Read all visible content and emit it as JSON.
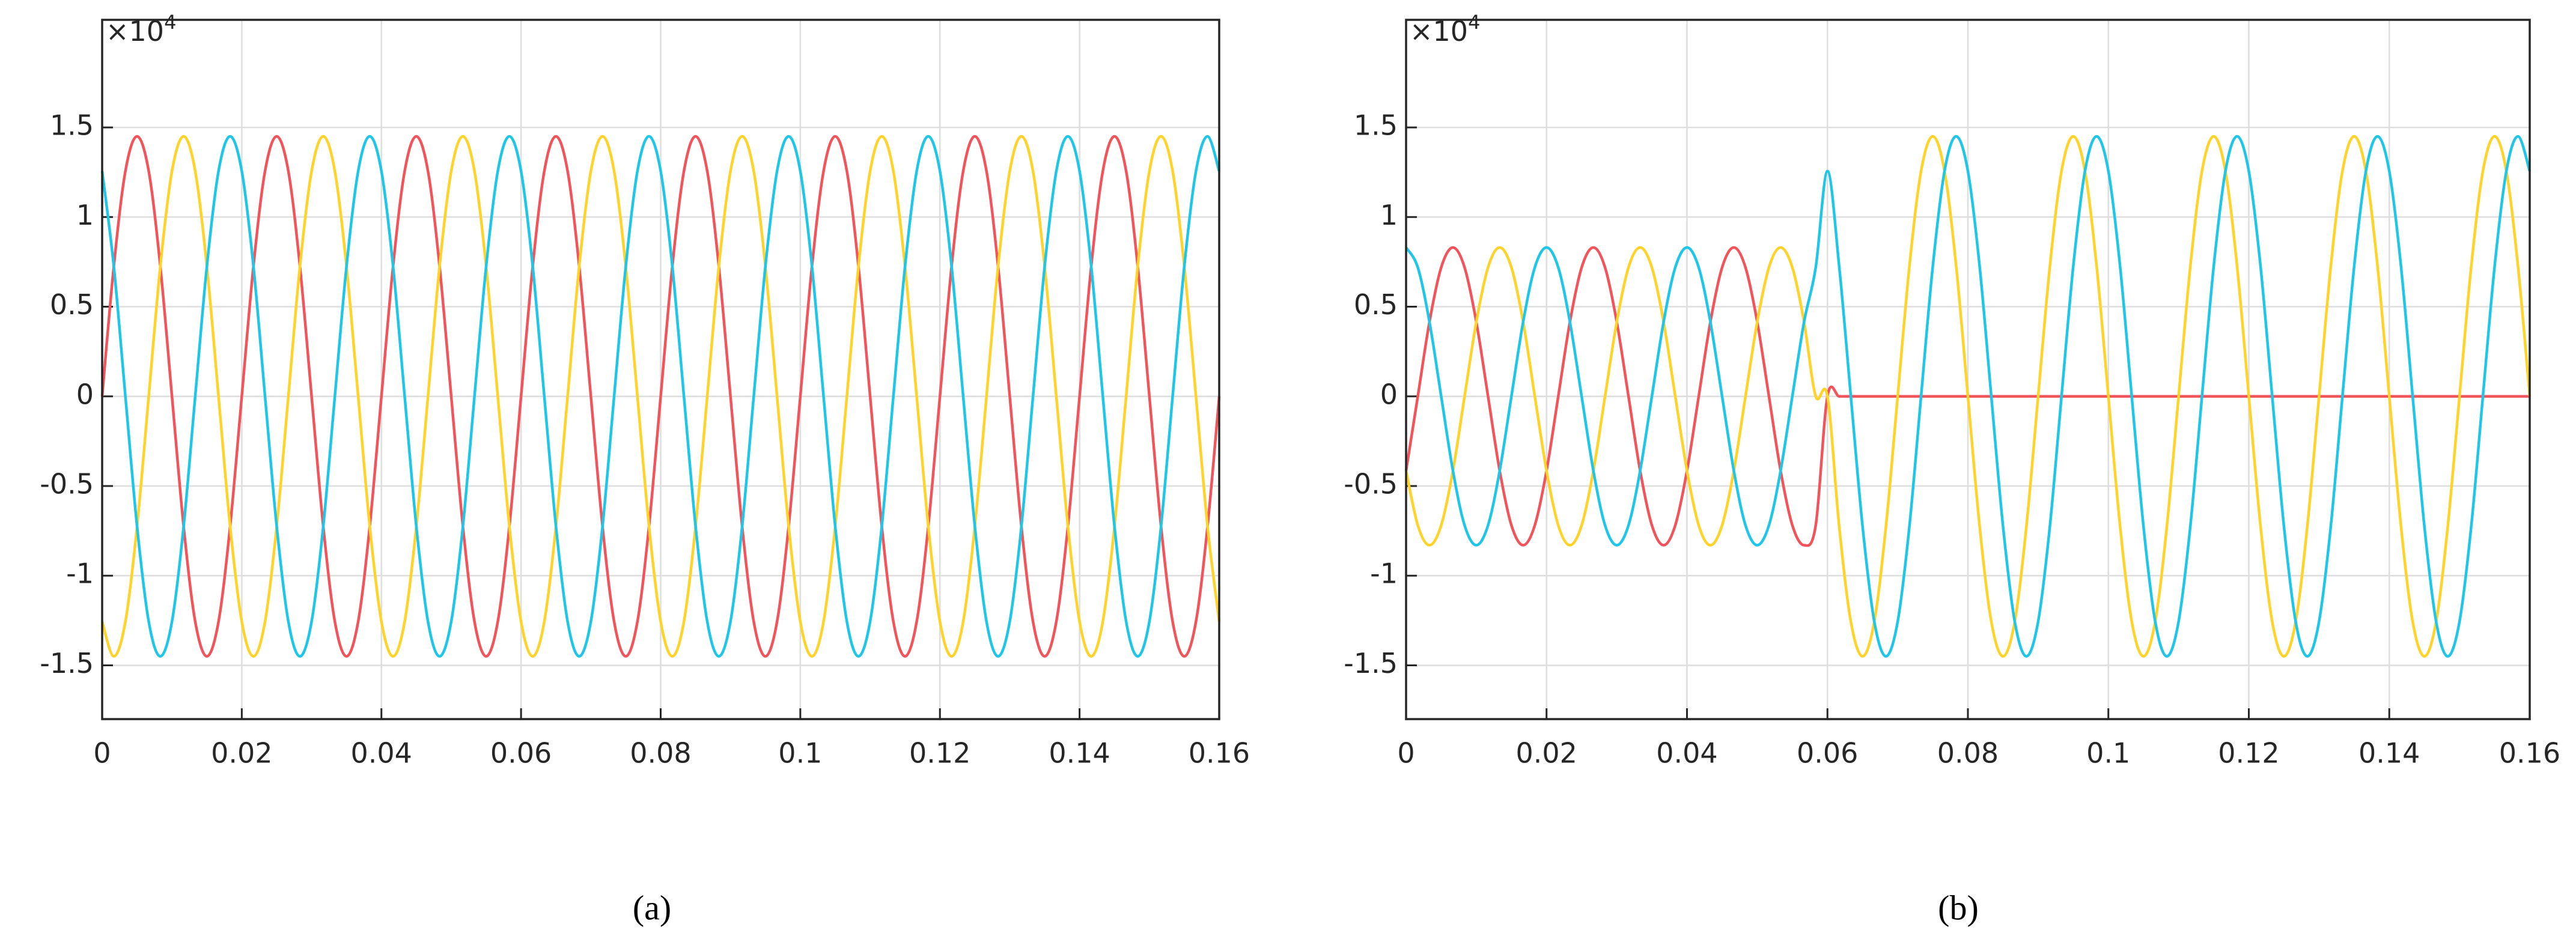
{
  "chart_data": [
    {
      "type": "line",
      "caption": "(a)",
      "y_exponent_label": {
        "base": "×10",
        "exponent": "4"
      },
      "xlim": [
        0,
        0.16
      ],
      "xticks": [
        0,
        0.02,
        0.04,
        0.06,
        0.08,
        0.1,
        0.12,
        0.14,
        0.16
      ],
      "ylim": [
        -1.8,
        2.1
      ],
      "yticks": [
        -1.5,
        -1,
        -0.5,
        0,
        0.5,
        1,
        1.5
      ],
      "grid": true,
      "x": [
        0,
        0.00167,
        0.00333,
        0.005,
        0.00667,
        0.00833,
        0.01,
        0.01167,
        0.01333,
        0.015,
        0.01667,
        0.01833,
        0.02,
        0.02167,
        0.02333,
        0.025,
        0.02667,
        0.02833,
        0.03,
        0.03167,
        0.03333,
        0.035,
        0.03667,
        0.03833,
        0.04,
        0.04167,
        0.04333,
        0.045,
        0.04667,
        0.04833,
        0.05,
        0.05167,
        0.05333,
        0.055,
        0.05667,
        0.05833,
        0.06,
        0.06167,
        0.06333,
        0.065,
        0.06667,
        0.06833,
        0.07,
        0.07167,
        0.07333,
        0.075,
        0.07667,
        0.07833,
        0.08,
        0.08167,
        0.08333,
        0.085,
        0.08667,
        0.08833,
        0.09,
        0.09167,
        0.09333,
        0.095,
        0.09667,
        0.09833,
        0.1,
        0.10167,
        0.10333,
        0.105,
        0.10667,
        0.10833,
        0.11,
        0.11167,
        0.11333,
        0.115,
        0.11667,
        0.11833,
        0.12,
        0.12167,
        0.12333,
        0.125,
        0.12667,
        0.12833,
        0.13,
        0.13167,
        0.13333,
        0.135,
        0.13667,
        0.13833,
        0.14,
        0.14167,
        0.14333,
        0.145,
        0.14667,
        0.14833,
        0.15,
        0.15167,
        0.15333,
        0.155,
        0.15667,
        0.15833,
        0.16
      ],
      "series": [
        {
          "color": "#f2545b",
          "values": [
            0,
            0.725,
            1.256,
            1.45,
            1.256,
            0.725,
            0,
            -0.725,
            -1.256,
            -1.45,
            -1.256,
            -0.725,
            0,
            0.725,
            1.256,
            1.45,
            1.256,
            0.725,
            0,
            -0.725,
            -1.256,
            -1.45,
            -1.256,
            -0.725,
            0,
            0.725,
            1.256,
            1.45,
            1.256,
            0.725,
            0,
            -0.725,
            -1.256,
            -1.45,
            -1.256,
            -0.725,
            0,
            0.725,
            1.256,
            1.45,
            1.256,
            0.725,
            0,
            -0.725,
            -1.256,
            -1.45,
            -1.256,
            -0.725,
            0,
            0.725,
            1.256,
            1.45,
            1.256,
            0.725,
            0,
            -0.725,
            -1.256,
            -1.45,
            -1.256,
            -0.725,
            0,
            0.725,
            1.256,
            1.45,
            1.256,
            0.725,
            0,
            -0.725,
            -1.256,
            -1.45,
            -1.256,
            -0.725,
            0,
            0.725,
            1.256,
            1.45,
            1.256,
            0.725,
            0,
            -0.725,
            -1.256,
            -1.45,
            -1.256,
            -0.725,
            0,
            0.725,
            1.256,
            1.45,
            1.256,
            0.725,
            0,
            -0.725,
            -1.256,
            -1.45,
            -1.256,
            -0.725,
            0
          ]
        },
        {
          "color": "#ffd32a",
          "values": [
            -1.256,
            -1.45,
            -1.256,
            -0.725,
            0,
            0.725,
            1.256,
            1.45,
            1.256,
            0.725,
            0,
            -0.725,
            -1.256,
            -1.45,
            -1.256,
            -0.725,
            0,
            0.725,
            1.256,
            1.45,
            1.256,
            0.725,
            0,
            -0.725,
            -1.256,
            -1.45,
            -1.256,
            -0.725,
            0,
            0.725,
            1.256,
            1.45,
            1.256,
            0.725,
            0,
            -0.725,
            -1.256,
            -1.45,
            -1.256,
            -0.725,
            0,
            0.725,
            1.256,
            1.45,
            1.256,
            0.725,
            0,
            -0.725,
            -1.256,
            -1.45,
            -1.256,
            -0.725,
            0,
            0.725,
            1.256,
            1.45,
            1.256,
            0.725,
            0,
            -0.725,
            -1.256,
            -1.45,
            -1.256,
            -0.725,
            0,
            0.725,
            1.256,
            1.45,
            1.256,
            0.725,
            0,
            -0.725,
            -1.256,
            -1.45,
            -1.256,
            -0.725,
            0,
            0.725,
            1.256,
            1.45,
            1.256,
            0.725,
            0,
            -0.725,
            -1.256,
            -1.45,
            -1.256,
            -0.725,
            0,
            0.725,
            1.256,
            1.45,
            1.256,
            0.725,
            0,
            -0.725,
            -1.256
          ]
        },
        {
          "color": "#1fc6e8",
          "values": [
            1.256,
            0.725,
            0,
            -0.725,
            -1.256,
            -1.45,
            -1.256,
            -0.725,
            0,
            0.725,
            1.256,
            1.45,
            1.256,
            0.725,
            0,
            -0.725,
            -1.256,
            -1.45,
            -1.256,
            -0.725,
            0,
            0.725,
            1.256,
            1.45,
            1.256,
            0.725,
            0,
            -0.725,
            -1.256,
            -1.45,
            -1.256,
            -0.725,
            0,
            0.725,
            1.256,
            1.45,
            1.256,
            0.725,
            0,
            -0.725,
            -1.256,
            -1.45,
            -1.256,
            -0.725,
            0,
            0.725,
            1.256,
            1.45,
            1.256,
            0.725,
            0,
            -0.725,
            -1.256,
            -1.45,
            -1.256,
            -0.725,
            0,
            0.725,
            1.256,
            1.45,
            1.256,
            0.725,
            0,
            -0.725,
            -1.256,
            -1.45,
            -1.256,
            -0.725,
            0,
            0.725,
            1.256,
            1.45,
            1.256,
            0.725,
            0,
            -0.725,
            -1.256,
            -1.45,
            -1.256,
            -0.725,
            0,
            0.725,
            1.256,
            1.45,
            1.256,
            0.725,
            0,
            -0.725,
            -1.256,
            -1.45,
            -1.256,
            -0.725,
            0,
            0.725,
            1.256,
            1.45,
            1.256
          ]
        }
      ]
    },
    {
      "type": "line",
      "caption": "(b)",
      "y_exponent_label": {
        "base": "×10",
        "exponent": "4"
      },
      "xlim": [
        0,
        0.16
      ],
      "xticks": [
        0,
        0.02,
        0.04,
        0.06,
        0.08,
        0.1,
        0.12,
        0.14,
        0.16
      ],
      "ylim": [
        -1.8,
        2.1
      ],
      "yticks": [
        -1.5,
        -1,
        -0.5,
        0,
        0.5,
        1,
        1.5
      ],
      "grid": true,
      "x": [
        0,
        0.00167,
        0.00333,
        0.005,
        0.00667,
        0.00833,
        0.01,
        0.01167,
        0.01333,
        0.015,
        0.01667,
        0.01833,
        0.02,
        0.02167,
        0.02333,
        0.025,
        0.02667,
        0.02833,
        0.03,
        0.03167,
        0.03333,
        0.035,
        0.03667,
        0.03833,
        0.04,
        0.04167,
        0.04333,
        0.045,
        0.04667,
        0.04833,
        0.05,
        0.05167,
        0.05333,
        0.055,
        0.05667,
        0.05833,
        0.06,
        0.06167,
        0.06333,
        0.065,
        0.06667,
        0.06833,
        0.07,
        0.07167,
        0.07333,
        0.075,
        0.07667,
        0.07833,
        0.08,
        0.08167,
        0.08333,
        0.085,
        0.08667,
        0.08833,
        0.09,
        0.09167,
        0.09333,
        0.095,
        0.09667,
        0.09833,
        0.1,
        0.10167,
        0.10333,
        0.105,
        0.10667,
        0.10833,
        0.11,
        0.11167,
        0.11333,
        0.115,
        0.11667,
        0.11833,
        0.12,
        0.12167,
        0.12333,
        0.125,
        0.12667,
        0.12833,
        0.13,
        0.13167,
        0.13333,
        0.135,
        0.13667,
        0.13833,
        0.14,
        0.14167,
        0.14333,
        0.145,
        0.14667,
        0.14833,
        0.15,
        0.15167,
        0.15333,
        0.155,
        0.15667,
        0.15833,
        0.16
      ],
      "series": [
        {
          "color": "#f2545b",
          "values": [
            -0.415,
            0,
            0.415,
            0.719,
            0.83,
            0.719,
            0.415,
            0,
            -0.415,
            -0.719,
            -0.83,
            -0.719,
            -0.415,
            0,
            0.415,
            0.719,
            0.83,
            0.719,
            0.415,
            0,
            -0.415,
            -0.719,
            -0.83,
            -0.719,
            -0.415,
            0,
            0.415,
            0.719,
            0.83,
            0.719,
            0.415,
            0,
            -0.415,
            -0.719,
            -0.83,
            -0.719,
            0,
            0,
            0,
            0,
            0,
            0,
            0,
            0,
            0,
            0,
            0,
            0,
            0,
            0,
            0,
            0,
            0,
            0,
            0,
            0,
            0,
            0,
            0,
            0,
            0,
            0,
            0,
            0,
            0,
            0,
            0,
            0,
            0,
            0,
            0,
            0,
            0,
            0,
            0,
            0,
            0,
            0,
            0,
            0,
            0,
            0,
            0,
            0,
            0,
            0,
            0,
            0,
            0,
            0,
            0,
            0,
            0,
            0,
            0,
            0,
            0
          ]
        },
        {
          "color": "#ffd32a",
          "values": [
            -0.415,
            -0.719,
            -0.83,
            -0.719,
            -0.415,
            0,
            0.415,
            0.719,
            0.83,
            0.719,
            0.415,
            0,
            -0.415,
            -0.719,
            -0.83,
            -0.719,
            -0.415,
            0,
            0.415,
            0.719,
            0.83,
            0.719,
            0.415,
            0,
            -0.415,
            -0.719,
            -0.83,
            -0.719,
            -0.415,
            0,
            0.415,
            0.719,
            0.83,
            0.719,
            0.415,
            0,
            0,
            -0.725,
            -1.256,
            -1.45,
            -1.256,
            -0.725,
            0,
            0.725,
            1.256,
            1.45,
            1.256,
            0.725,
            0,
            -0.725,
            -1.256,
            -1.45,
            -1.256,
            -0.725,
            0,
            0.725,
            1.256,
            1.45,
            1.256,
            0.725,
            0,
            -0.725,
            -1.256,
            -1.45,
            -1.256,
            -0.725,
            0,
            0.725,
            1.256,
            1.45,
            1.256,
            0.725,
            0,
            -0.725,
            -1.256,
            -1.45,
            -1.256,
            -0.725,
            0,
            0.725,
            1.256,
            1.45,
            1.256,
            0.725,
            0,
            -0.725,
            -1.256,
            -1.45,
            -1.256,
            -0.725,
            0,
            0.725,
            1.256,
            1.45,
            1.256,
            0.725,
            0
          ]
        },
        {
          "color": "#1fc6e8",
          "values": [
            0.83,
            0.719,
            0.415,
            0,
            -0.415,
            -0.719,
            -0.83,
            -0.719,
            -0.415,
            0,
            0.415,
            0.719,
            0.83,
            0.719,
            0.415,
            0,
            -0.415,
            -0.719,
            -0.83,
            -0.719,
            -0.415,
            0,
            0.415,
            0.719,
            0.83,
            0.719,
            0.415,
            0,
            -0.415,
            -0.719,
            -0.83,
            -0.719,
            -0.415,
            0,
            0.415,
            0.719,
            1.256,
            0.725,
            0,
            -0.725,
            -1.256,
            -1.45,
            -1.256,
            -0.725,
            0,
            0.725,
            1.256,
            1.45,
            1.256,
            0.725,
            0,
            -0.725,
            -1.256,
            -1.45,
            -1.256,
            -0.725,
            0,
            0.725,
            1.256,
            1.45,
            1.256,
            0.725,
            0,
            -0.725,
            -1.256,
            -1.45,
            -1.256,
            -0.725,
            0,
            0.725,
            1.256,
            1.45,
            1.256,
            0.725,
            0,
            -0.725,
            -1.256,
            -1.45,
            -1.256,
            -0.725,
            0,
            0.725,
            1.256,
            1.45,
            1.256,
            0.725,
            0,
            -0.725,
            -1.256,
            -1.45,
            -1.256,
            -0.725,
            0,
            0.725,
            1.256,
            1.45,
            1.256
          ]
        }
      ]
    }
  ]
}
